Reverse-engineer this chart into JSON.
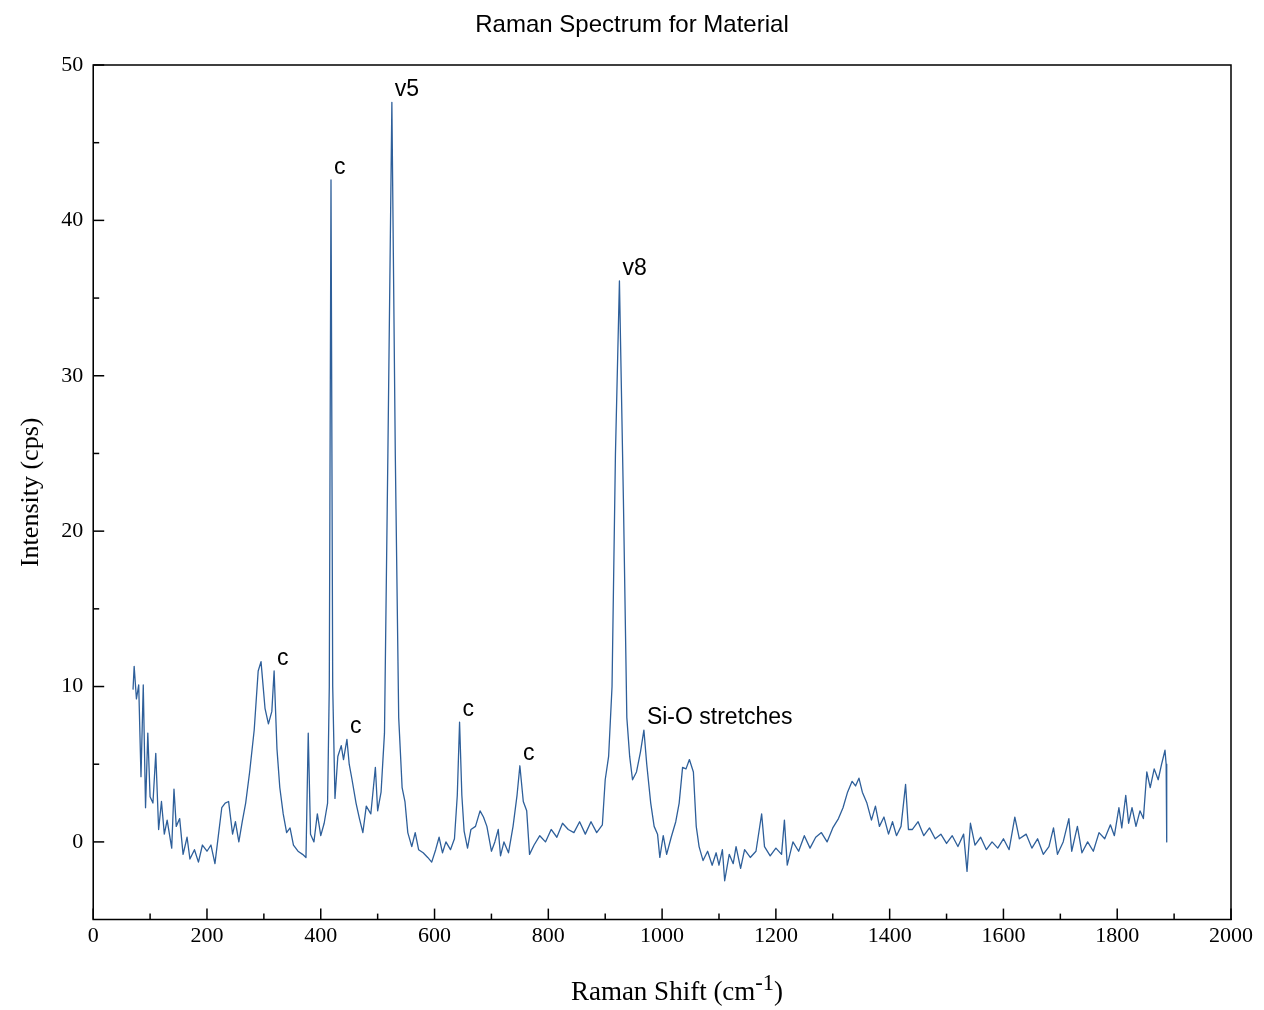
{
  "chart_data": {
    "type": "line",
    "title": "Raman Spectrum for Material",
    "xlabel": "Raman Shift (cm$^{-1}$)",
    "ylabel": "Intensity (cps)",
    "xlim": [
      0,
      2000
    ],
    "ylim": [
      -5,
      50
    ],
    "xticks": [
      0,
      {
        "value": 100,
        "label": null
      },
      200,
      {
        "value": 300,
        "label": null
      },
      400,
      {
        "value": 500,
        "label": null
      },
      600,
      {
        "value": 700,
        "label": null
      },
      800,
      {
        "value": 900,
        "label": null
      },
      1000,
      {
        "value": 1100,
        "label": null
      },
      1200,
      {
        "value": 1300,
        "label": null
      },
      1400,
      {
        "value": 1500,
        "label": null
      },
      1600,
      {
        "value": 1700,
        "label": null
      },
      1800,
      {
        "value": 1900,
        "label": null
      },
      2000
    ],
    "yticks": [
      0,
      {
        "value": 5,
        "label": null
      },
      10,
      {
        "value": 15,
        "label": null
      },
      20,
      {
        "value": 25,
        "label": null
      },
      30,
      {
        "value": 35,
        "label": null
      },
      40,
      {
        "value": 45,
        "label": null
      },
      50
    ],
    "marker": "none",
    "line_style": "solid",
    "annotations": [
      {
        "text": "c",
        "x": 318,
        "y": 11.0
      },
      {
        "text": "c",
        "x": 418,
        "y": 42.6
      },
      {
        "text": "c",
        "x": 446,
        "y": 6.6
      },
      {
        "text": "v5",
        "x": 525,
        "y": 47.6
      },
      {
        "text": "c",
        "x": 644,
        "y": 7.7
      },
      {
        "text": "c",
        "x": 750,
        "y": 4.9
      },
      {
        "text": "v8",
        "x": 925,
        "y": 36.1
      },
      {
        "text": "Si-O stretches",
        "x": 968,
        "y": 7.2
      }
    ],
    "series": [
      {
        "color": "#2e5f9a",
        "x": [
          70,
          72,
          76,
          80,
          84,
          88,
          92,
          96,
          100,
          105,
          110,
          115,
          120,
          125,
          130,
          138,
          142,
          146,
          152,
          158,
          165,
          170,
          178,
          185,
          192,
          200,
          207,
          214,
          220,
          226,
          232,
          238,
          245,
          250,
          256,
          262,
          268,
          275,
          283,
          290,
          295,
          302,
          308,
          314,
          318,
          323,
          328,
          334,
          340,
          346,
          352,
          360,
          368,
          374,
          378,
          382,
          388,
          394,
          400,
          406,
          412,
          415,
          418,
          421,
          425,
          430,
          436,
          440,
          446,
          450,
          455,
          462,
          468,
          474,
          480,
          488,
          496,
          500,
          506,
          512,
          518,
          525,
          531,
          537,
          543,
          548,
          553,
          560,
          566,
          572,
          580,
          588,
          595,
          602,
          608,
          614,
          620,
          628,
          635,
          640,
          644,
          648,
          652,
          658,
          664,
          672,
          680,
          686,
          692,
          700,
          706,
          712,
          716,
          722,
          730,
          738,
          745,
          750,
          756,
          762,
          767,
          775,
          785,
          795,
          805,
          815,
          825,
          835,
          845,
          855,
          865,
          875,
          885,
          895,
          900,
          906,
          912,
          918,
          925,
          932,
          938,
          943,
          948,
          955,
          962,
          968,
          973,
          980,
          986,
          992,
          996,
          1002,
          1008,
          1016,
          1024,
          1030,
          1036,
          1042,
          1048,
          1055,
          1060,
          1065,
          1072,
          1080,
          1088,
          1095,
          1100,
          1106,
          1110,
          1118,
          1125,
          1130,
          1138,
          1145,
          1155,
          1165,
          1175,
          1180,
          1190,
          1200,
          1210,
          1215,
          1220,
          1230,
          1240,
          1250,
          1260,
          1270,
          1280,
          1290,
          1300,
          1310,
          1318,
          1326,
          1334,
          1340,
          1346,
          1352,
          1360,
          1368,
          1375,
          1382,
          1390,
          1398,
          1405,
          1412,
          1420,
          1428,
          1433,
          1440,
          1450,
          1460,
          1470,
          1480,
          1490,
          1500,
          1510,
          1520,
          1530,
          1536,
          1542,
          1550,
          1560,
          1570,
          1580,
          1590,
          1600,
          1610,
          1620,
          1628,
          1640,
          1650,
          1660,
          1670,
          1680,
          1688,
          1695,
          1705,
          1715,
          1720,
          1730,
          1738,
          1748,
          1758,
          1768,
          1778,
          1788,
          1795,
          1803,
          1808,
          1815,
          1820,
          1826,
          1833,
          1840,
          1846,
          1852,
          1858,
          1865,
          1872,
          1878,
          1884,
          1886,
          1887
        ],
        "values": [
          9.8,
          11.3,
          9.2,
          10.1,
          4.2,
          10.1,
          2.2,
          7.0,
          2.9,
          2.5,
          5.7,
          0.8,
          2.6,
          0.5,
          1.4,
          -0.4,
          3.4,
          1.0,
          1.5,
          -0.8,
          0.3,
          -1.1,
          -0.5,
          -1.3,
          -0.2,
          -0.6,
          -0.2,
          -1.4,
          0.4,
          2.2,
          2.5,
          2.6,
          0.5,
          1.3,
          0.0,
          1.3,
          2.5,
          4.5,
          7.2,
          11.0,
          11.6,
          8.6,
          7.6,
          8.4,
          11.0,
          6.0,
          3.5,
          1.8,
          0.6,
          0.9,
          -0.2,
          -0.6,
          -0.8,
          -1.0,
          7.0,
          0.5,
          0.0,
          1.8,
          0.4,
          1.2,
          2.5,
          10,
          42.6,
          10,
          2.8,
          5.5,
          6.2,
          5.3,
          6.6,
          5.0,
          4.0,
          2.5,
          1.5,
          0.6,
          2.3,
          1.8,
          4.8,
          2.0,
          3.2,
          7,
          25,
          47.6,
          25,
          8,
          3.5,
          2.6,
          0.6,
          -0.3,
          0.6,
          -0.5,
          -0.7,
          -1.0,
          -1.3,
          -0.5,
          0.3,
          -0.7,
          0.0,
          -0.5,
          0.2,
          3,
          7.7,
          3,
          0.7,
          -0.4,
          0.8,
          1.0,
          2.0,
          1.6,
          1.0,
          -0.6,
          0.0,
          0.8,
          -0.9,
          0.0,
          -0.7,
          1.0,
          3.0,
          4.9,
          2.6,
          2.0,
          -0.8,
          -0.2,
          0.4,
          0.0,
          0.8,
          0.3,
          1.2,
          0.8,
          0.6,
          1.3,
          0.5,
          1.3,
          0.6,
          1.1,
          4,
          5.5,
          10,
          25,
          36.1,
          22,
          8,
          5.5,
          4.0,
          4.5,
          5.8,
          7.2,
          5.0,
          2.5,
          1.0,
          0.5,
          -1.0,
          0.4,
          -0.8,
          0.3,
          1.3,
          2.5,
          4.8,
          4.7,
          5.3,
          4.5,
          1.0,
          -0.3,
          -1.2,
          -0.6,
          -1.5,
          -0.7,
          -1.5,
          -0.5,
          -2.5,
          -0.8,
          -1.4,
          -0.3,
          -1.7,
          -0.5,
          -1.0,
          -0.6,
          1.8,
          -0.3,
          -0.9,
          -0.4,
          -0.8,
          1.4,
          -1.5,
          0.0,
          -0.6,
          0.4,
          -0.4,
          0.3,
          0.6,
          0.0,
          0.9,
          1.5,
          2.2,
          3.2,
          3.9,
          3.6,
          4.1,
          3.2,
          2.5,
          1.4,
          2.3,
          1.0,
          1.6,
          0.5,
          1.3,
          0.4,
          1.0,
          3.7,
          0.8,
          0.8,
          1.3,
          0.4,
          0.9,
          0.2,
          0.5,
          -0.1,
          0.4,
          -0.3,
          0.5,
          -1.9,
          1.2,
          -0.2,
          0.3,
          -0.5,
          0.0,
          -0.4,
          0.2,
          -0.5,
          1.6,
          0.2,
          0.5,
          -0.4,
          0.2,
          -0.8,
          -0.3,
          0.9,
          -0.8,
          0.0,
          1.5,
          -0.6,
          1.0,
          -0.7,
          0.0,
          -0.6,
          0.6,
          0.2,
          1.1,
          0.4,
          2.2,
          0.9,
          3.0,
          1.2,
          2.2,
          1.0,
          2.0,
          1.5,
          4.5,
          3.5,
          4.7,
          4.0,
          5.0,
          5.9,
          5.0,
          0
        ]
      }
    ]
  }
}
